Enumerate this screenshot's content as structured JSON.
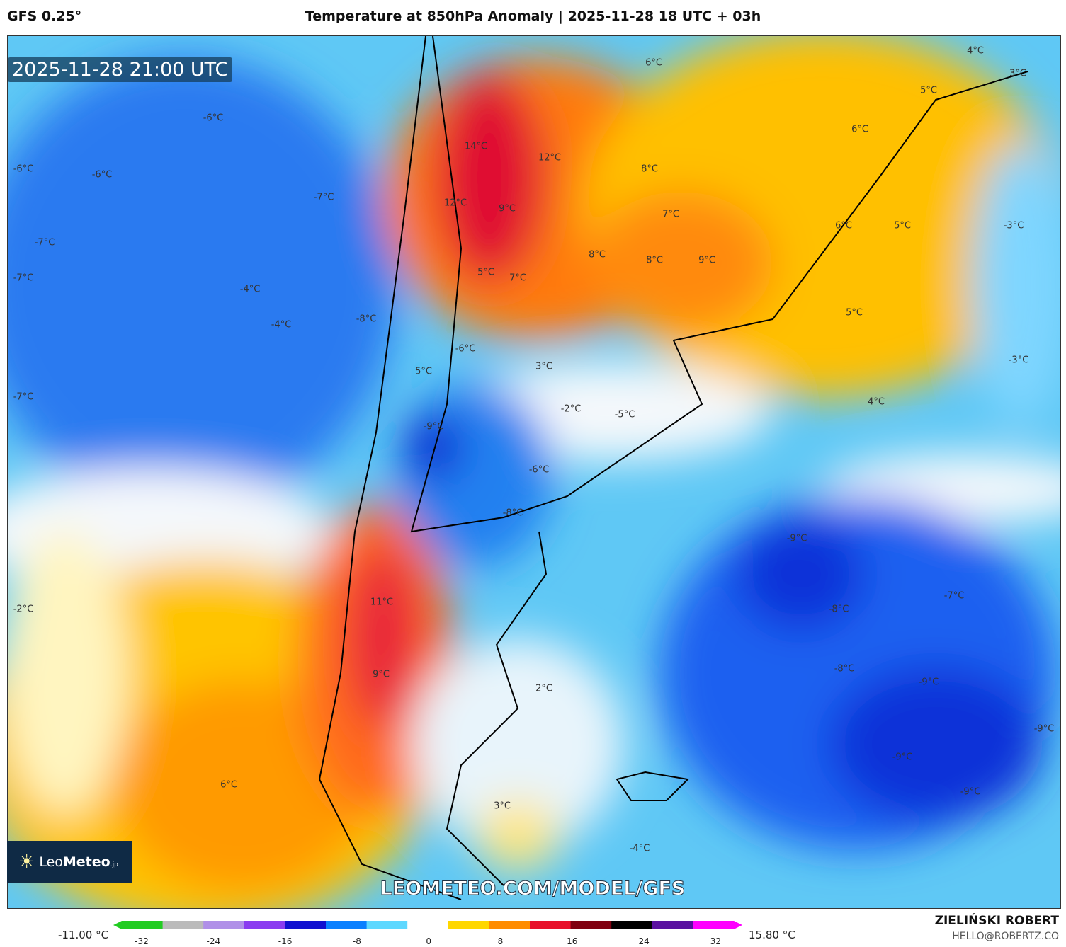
{
  "header": {
    "model": "GFS 0.25°",
    "title": "Temperature at 850hPa Anomaly | 2025-11-28 18 UTC + 03h"
  },
  "map": {
    "timestamp": "2025-11-28 21:00 UTC",
    "watermark_url": "LEOMETEO.COM/MODEL/GFS",
    "logo": "LeoMeteo.jp",
    "labels": [
      "-6°C",
      "-6°C",
      "-6°C",
      "-7°C",
      "-7°C",
      "-7°C",
      "-4°C",
      "-4°C",
      "-8°C",
      "-7°C",
      "-2°C",
      "6°C",
      "4°C",
      "3°C",
      "5°C",
      "6°C",
      "14°C",
      "12°C",
      "8°C",
      "12°C",
      "9°C",
      "7°C",
      "6°C",
      "5°C",
      "-3°C",
      "8°C",
      "8°C",
      "9°C",
      "5°C",
      "7°C",
      "5°C",
      "-6°C",
      "3°C",
      "5°C",
      "-3°C",
      "-2°C",
      "-5°C",
      "4°C",
      "-9°C",
      "-6°C",
      "-8°C",
      "-9°C",
      "-7°C",
      "11°C",
      "-8°C",
      "-8°C",
      "9°C",
      "2°C",
      "-9°C",
      "-9°C",
      "-9°C",
      "6°C",
      "-9°C",
      "3°C",
      "-4°C"
    ]
  },
  "colorbar": {
    "min_label": "-11.00 °C",
    "max_label": "15.80 °C",
    "ticks": [
      "-32",
      "-24",
      "-16",
      "-8",
      "0",
      "8",
      "16",
      "24",
      "32"
    ],
    "colors": [
      "#22cc22",
      "#bbbbbb",
      "#b090e8",
      "#8a3cf0",
      "#1010d0",
      "#0a80ff",
      "#5ed8ff",
      "#ffffff",
      "#ffd700",
      "#ff8c00",
      "#e8102a",
      "#800010",
      "#000000",
      "#5a10a0",
      "#ff00ff"
    ]
  },
  "footer": {
    "author": "ZIELIŃSKI ROBERT",
    "email": "HELLO@ROBERTZ.CO"
  }
}
